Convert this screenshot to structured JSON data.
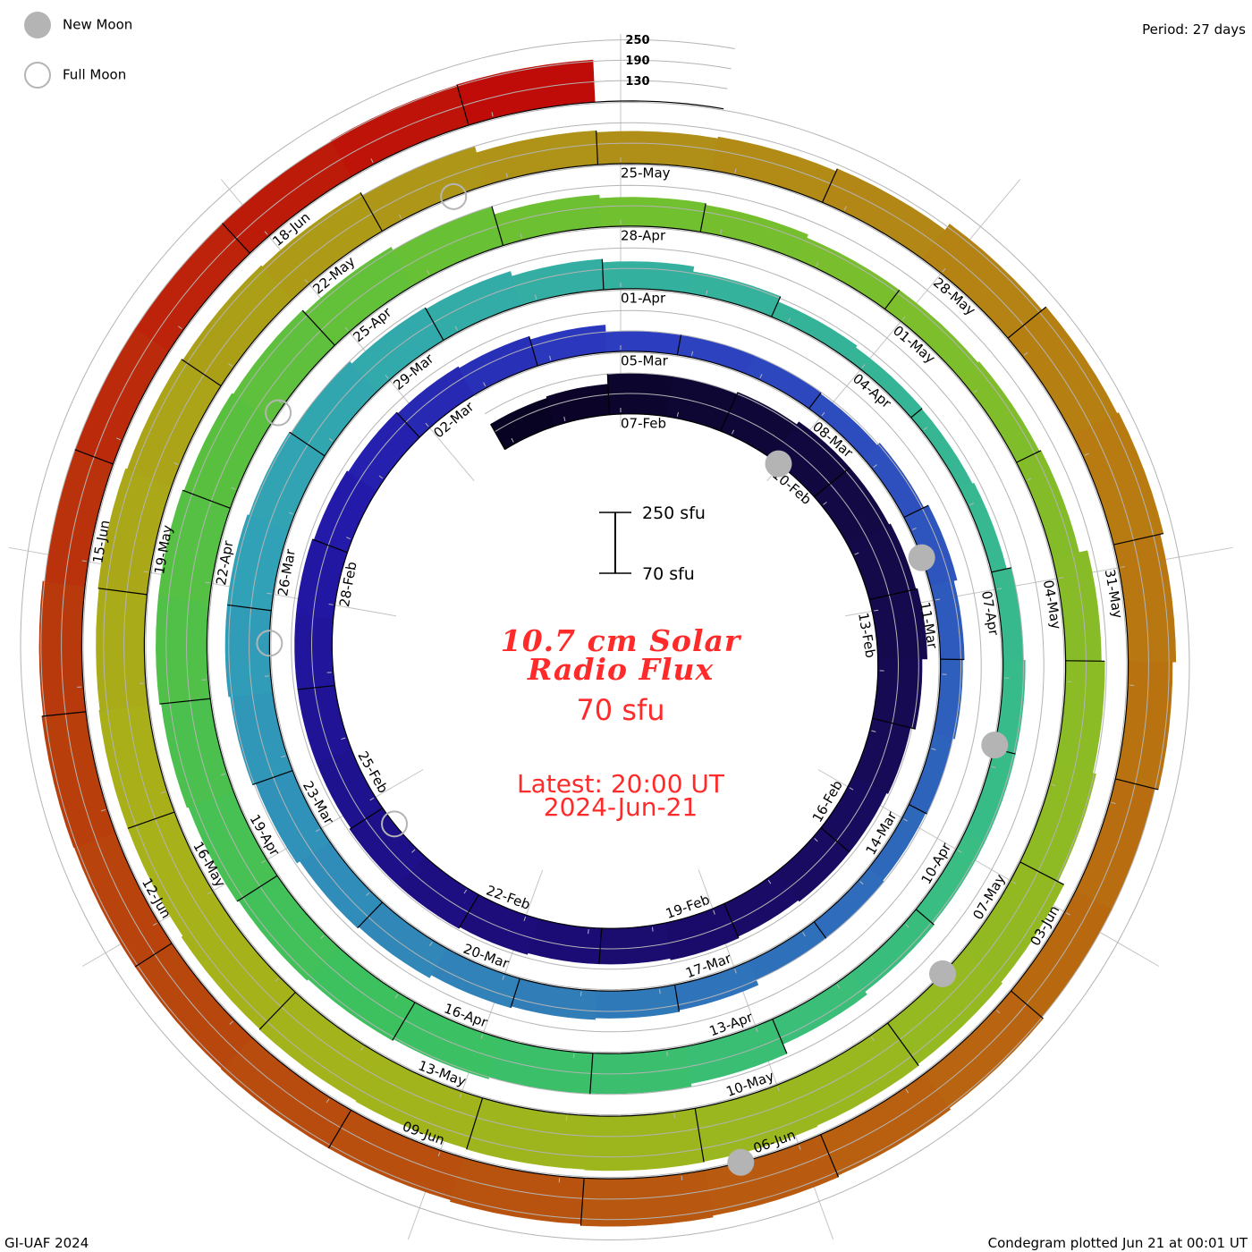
{
  "legend": {
    "new_moon": "New Moon",
    "full_moon": "Full Moon"
  },
  "period": "Period: 27 days",
  "center": {
    "title_line1": "10.7 cm Solar",
    "title_line2": "Radio Flux",
    "current_value": "70 sfu",
    "latest_time": "Latest: 20:00 UT",
    "latest_date": "2024-Jun-21"
  },
  "scale_bar": {
    "top": "250 sfu",
    "bottom": "70 sfu"
  },
  "footer_left": "GI-UAF 2024",
  "footer_right": "Condegram plotted Jun 21 at 00:01 UT",
  "chart_data": {
    "type": "bar",
    "layout": "spiral condegram",
    "title": "10.7 cm Solar Radio Flux",
    "period_days": 27,
    "units": "sfu",
    "baseline_value": 70,
    "max_value": 250,
    "ruler_levels": [
      "130",
      "190",
      "250"
    ],
    "reference_label_date": "07-Feb",
    "start_offset_days": -2.2,
    "values": [
      155,
      160,
      190,
      190,
      195,
      205,
      205,
      210,
      215,
      200,
      185,
      180,
      180,
      175,
      180,
      175,
      175,
      180,
      185,
      185,
      180,
      180,
      180,
      180,
      175,
      170,
      165,
      160,
      150,
      130,
      130,
      128,
      125,
      135,
      150,
      140,
      135,
      130,
      125,
      128,
      130,
      145,
      150,
      155,
      160,
      170,
      175,
      185,
      195,
      200,
      200,
      195,
      190,
      180,
      175,
      160,
      150,
      135,
      118,
      112,
      110,
      115,
      130,
      135,
      135,
      135,
      140,
      150,
      180,
      188,
      190,
      195,
      200,
      205,
      210,
      215,
      220,
      220,
      215,
      210,
      200,
      190,
      165,
      155,
      150,
      140,
      140,
      145,
      150,
      175,
      185,
      195,
      215,
      220,
      225,
      228,
      230,
      228,
      225,
      222,
      220,
      215,
      215,
      212,
      215,
      210,
      205,
      200,
      190,
      170,
      165,
      170,
      178,
      200,
      215,
      220,
      210,
      200,
      190,
      190,
      195,
      200,
      205,
      210,
      205,
      200,
      200,
      198,
      198,
      200,
      195,
      190,
      190,
      188,
      190,
      192,
      194
    ],
    "label_interval_days": 3,
    "date_labels": [
      "07-Feb",
      "10-Feb",
      "13-Feb",
      "16-Feb",
      "19-Feb",
      "22-Feb",
      "25-Feb",
      "28-Feb",
      "02-Mar",
      "05-Mar",
      "08-Mar",
      "11-Mar",
      "14-Mar",
      "17-Mar",
      "20-Mar",
      "23-Mar",
      "26-Mar",
      "29-Mar",
      "01-Apr",
      "04-Apr",
      "07-Apr",
      "10-Apr",
      "13-Apr",
      "16-Apr",
      "19-Apr",
      "22-Apr",
      "25-Apr",
      "28-Apr",
      "01-May",
      "04-May",
      "07-May",
      "10-May",
      "13-May",
      "16-May",
      "19-May",
      "22-May",
      "25-May",
      "28-May",
      "31-May",
      "03-Jun",
      "06-Jun",
      "09-Jun",
      "12-Jun",
      "15-Jun",
      "18-Jun"
    ],
    "moon_phases": [
      {
        "type": "new",
        "day_offset": 2.96
      },
      {
        "type": "new",
        "day_offset": 32.4
      },
      {
        "type": "new",
        "day_offset": 61.76
      },
      {
        "type": "new",
        "day_offset": 91.1
      },
      {
        "type": "new",
        "day_offset": 120.5
      },
      {
        "type": "full",
        "day_offset": 17.5
      },
      {
        "type": "full",
        "day_offset": 47.4
      },
      {
        "type": "full",
        "day_offset": 76.9
      },
      {
        "type": "full",
        "day_offset": 106.5
      }
    ],
    "color_stops": [
      {
        "day_offset": -2.2,
        "color": "#080320"
      },
      {
        "day_offset": 5,
        "color": "#140a48"
      },
      {
        "day_offset": 15,
        "color": "#1c0c78"
      },
      {
        "day_offset": 22,
        "color": "#2218a8"
      },
      {
        "day_offset": 27,
        "color": "#2c3cc0"
      },
      {
        "day_offset": 35,
        "color": "#2e62bc"
      },
      {
        "day_offset": 42,
        "color": "#3080b8"
      },
      {
        "day_offset": 48,
        "color": "#30a0b8"
      },
      {
        "day_offset": 54,
        "color": "#34b0a0"
      },
      {
        "day_offset": 62,
        "color": "#38bc88"
      },
      {
        "day_offset": 70,
        "color": "#3cc060"
      },
      {
        "day_offset": 76,
        "color": "#58c040"
      },
      {
        "day_offset": 81,
        "color": "#70c030"
      },
      {
        "day_offset": 92,
        "color": "#98b820"
      },
      {
        "day_offset": 100,
        "color": "#a8b018"
      },
      {
        "day_offset": 108,
        "color": "#b09018"
      },
      {
        "day_offset": 114,
        "color": "#b87810"
      },
      {
        "day_offset": 121,
        "color": "#b85810"
      },
      {
        "day_offset": 128,
        "color": "#b83c0c"
      },
      {
        "day_offset": 134.8,
        "color": "#c00808"
      }
    ],
    "moon_color": "#b4b4b4",
    "text_color": "#ff2a2a"
  }
}
